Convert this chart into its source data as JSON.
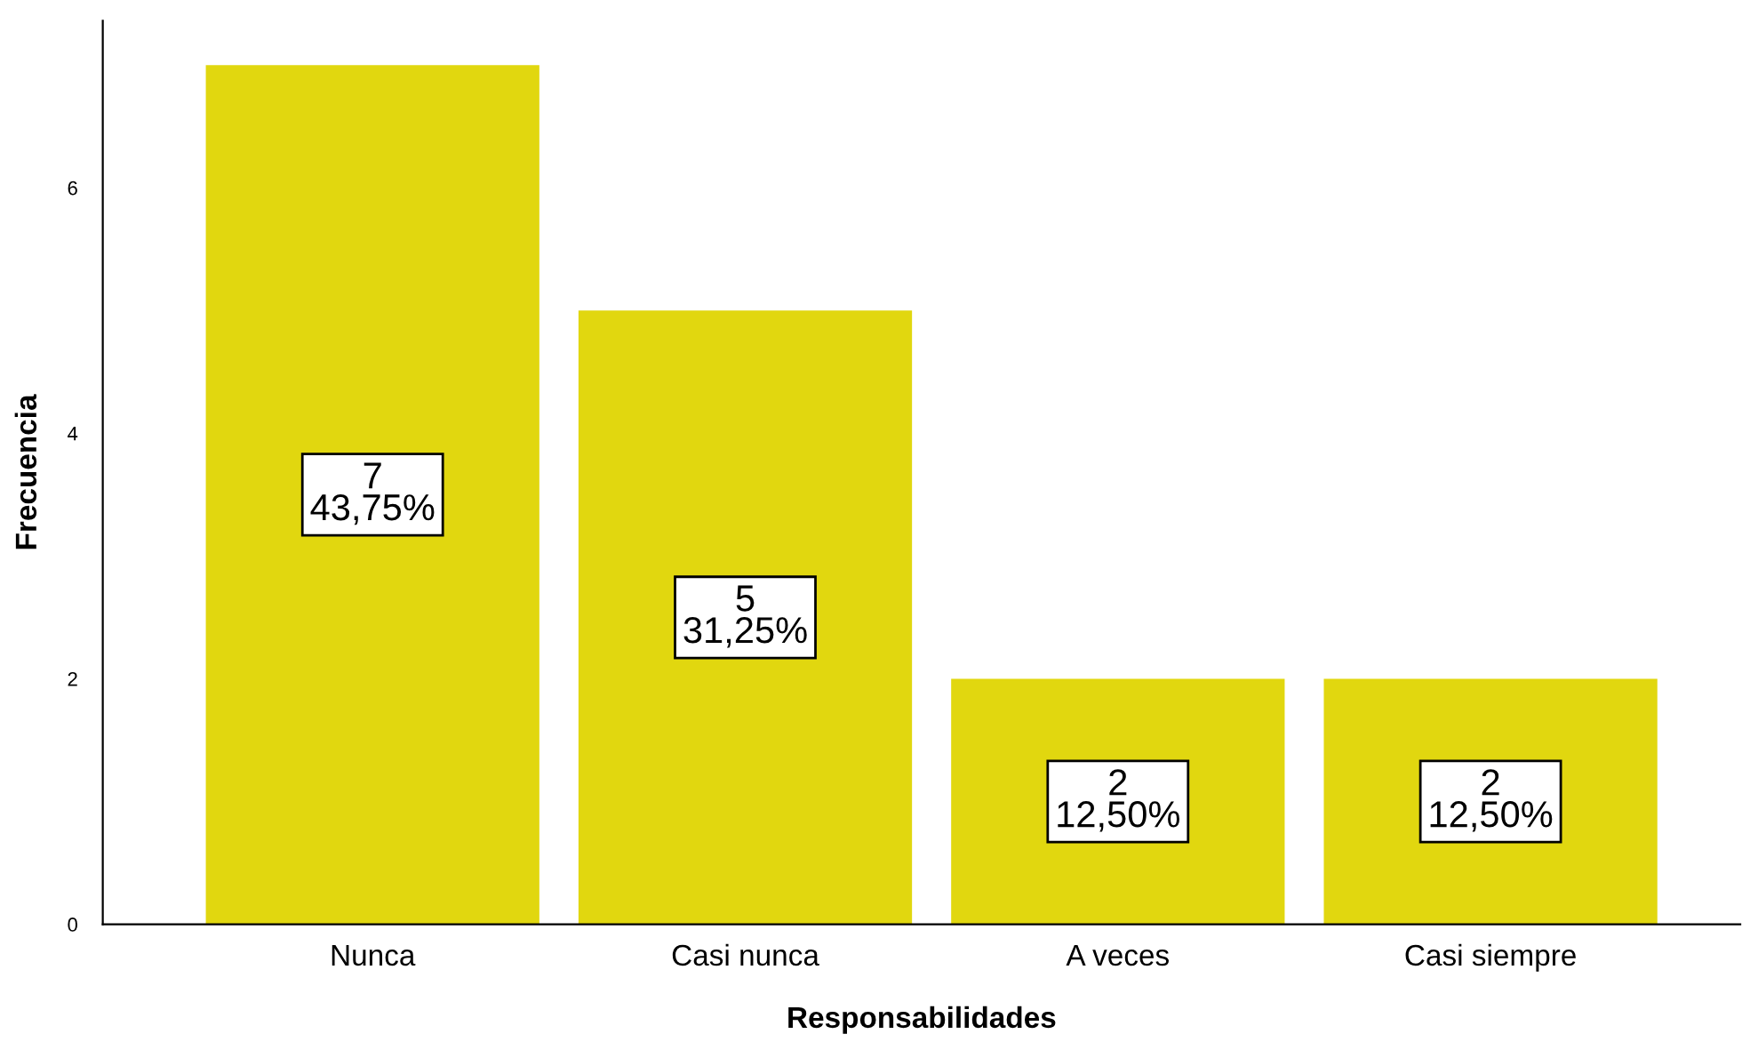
{
  "chart_data": {
    "type": "bar",
    "xlabel": "Responsabilidades",
    "ylabel": "Frecuencia",
    "categories": [
      "Nunca",
      "Casi nunca",
      "A veces",
      "Casi siempre"
    ],
    "values": [
      7,
      5,
      2,
      2
    ],
    "value_labels": [
      "7\n43,75%",
      "5\n31,25%",
      "2\n12,50%",
      "2\n12,50%"
    ],
    "color": "#e1d70f",
    "ylim": [
      0,
      7.36
    ],
    "yticks": [
      0,
      2,
      4,
      6
    ],
    "grid": false,
    "legend": false
  }
}
